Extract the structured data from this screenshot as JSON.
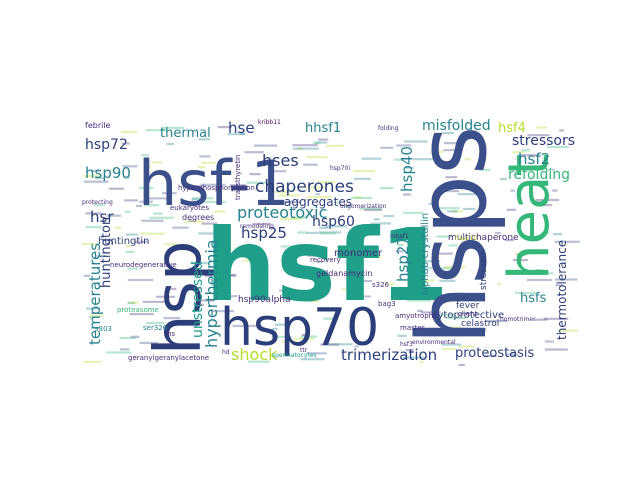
{
  "palette": {
    "dark": "#3b4f8a",
    "navy": "#2c3e7a",
    "teal": "#1f9e89",
    "sea": "#26828e",
    "green": "#35b779",
    "lime": "#b5de2b",
    "purple": "#472d7b",
    "deep": "#440154"
  },
  "words": [
    {
      "text": "hsf1",
      "color": "teal"
    },
    {
      "text": "hsps",
      "color": "dark"
    },
    {
      "text": "hsf-1",
      "color": "dark"
    },
    {
      "text": "hsp",
      "color": "navy"
    },
    {
      "text": "heat",
      "color": "green"
    },
    {
      "text": "hsp70",
      "color": "navy"
    },
    {
      "text": "chaperones",
      "color": "navy"
    },
    {
      "text": "proteotoxic",
      "color": "sea"
    },
    {
      "text": "trimerization",
      "color": "navy"
    },
    {
      "text": "proteostasis",
      "color": "navy"
    },
    {
      "text": "hyperthermia",
      "color": "sea"
    },
    {
      "text": "temperatures",
      "color": "sea"
    },
    {
      "text": "thermotolerance",
      "color": "navy"
    },
    {
      "text": "hsp90",
      "color": "sea"
    },
    {
      "text": "hsp72",
      "color": "navy"
    },
    {
      "text": "hsp25",
      "color": "navy"
    },
    {
      "text": "hsp60",
      "color": "navy"
    },
    {
      "text": "hsp40",
      "color": "sea"
    },
    {
      "text": "hsp27",
      "color": "sea"
    },
    {
      "text": "hsf2",
      "color": "sea"
    },
    {
      "text": "hsf4",
      "color": "lime"
    },
    {
      "text": "hsfs",
      "color": "sea"
    },
    {
      "text": "hses",
      "color": "navy"
    },
    {
      "text": "hse",
      "color": "navy"
    },
    {
      "text": "hsr",
      "color": "navy"
    },
    {
      "text": "hhsf1",
      "color": "sea"
    },
    {
      "text": "shock",
      "color": "lime"
    },
    {
      "text": "thermal",
      "color": "sea"
    },
    {
      "text": "stressors",
      "color": "navy"
    },
    {
      "text": "refolding",
      "color": "green"
    },
    {
      "text": "misfolded",
      "color": "sea"
    },
    {
      "text": "aggregates",
      "color": "navy"
    },
    {
      "text": "unstressed",
      "color": "teal"
    },
    {
      "text": "huntington",
      "color": "navy"
    },
    {
      "text": "huntingtin",
      "color": "navy"
    },
    {
      "text": "alphab-crystallin",
      "color": "sea"
    },
    {
      "text": "cytoprotective",
      "color": "navy"
    },
    {
      "text": "multichaperone",
      "color": "purple"
    },
    {
      "text": "monomer",
      "color": "purple"
    },
    {
      "text": "hsp90alpha",
      "color": "purple"
    },
    {
      "text": "geldanamycin",
      "color": "purple"
    },
    {
      "text": "celastrol",
      "color": "navy"
    },
    {
      "text": "fever",
      "color": "navy"
    },
    {
      "text": "stressed",
      "color": "navy"
    },
    {
      "text": "febrile",
      "color": "purple"
    },
    {
      "text": "degrees",
      "color": "purple"
    },
    {
      "text": "eukaryotes",
      "color": "purple"
    },
    {
      "text": "hyperphosphorylation",
      "color": "purple"
    },
    {
      "text": "transthyretin",
      "color": "purple"
    },
    {
      "text": "kribb11",
      "color": "deep"
    },
    {
      "text": "folding",
      "color": "purple"
    },
    {
      "text": "recovery",
      "color": "purple"
    },
    {
      "text": "neurodegenerative",
      "color": "purple"
    },
    {
      "text": "geranylgeranylacetone",
      "color": "purple"
    },
    {
      "text": "spermatocytes",
      "color": "teal"
    },
    {
      "text": "amyotrophic",
      "color": "purple"
    },
    {
      "text": "homotrimer",
      "color": "purple"
    },
    {
      "text": "master",
      "color": "purple"
    },
    {
      "text": "client",
      "color": "purple"
    },
    {
      "text": "ser326",
      "color": "sea"
    },
    {
      "text": "s326",
      "color": "purple"
    },
    {
      "text": "proteasome",
      "color": "green"
    },
    {
      "text": "protecting",
      "color": "purple"
    },
    {
      "text": "remodeling",
      "color": "purple"
    },
    {
      "text": "environmental",
      "color": "purple"
    },
    {
      "text": "bag3",
      "color": "purple"
    },
    {
      "text": "hsp110",
      "color": "lime"
    },
    {
      "text": "s303",
      "color": "sea"
    },
    {
      "text": "hs",
      "color": "purple"
    },
    {
      "text": "ttr",
      "color": "purple"
    },
    {
      "text": "hd",
      "color": "purple"
    },
    {
      "text": "mhsf1",
      "color": "purple"
    },
    {
      "text": "hsf3",
      "color": "purple"
    },
    {
      "text": "hsp70i",
      "color": "purple"
    },
    {
      "text": "oligomerization",
      "color": "purple"
    }
  ]
}
